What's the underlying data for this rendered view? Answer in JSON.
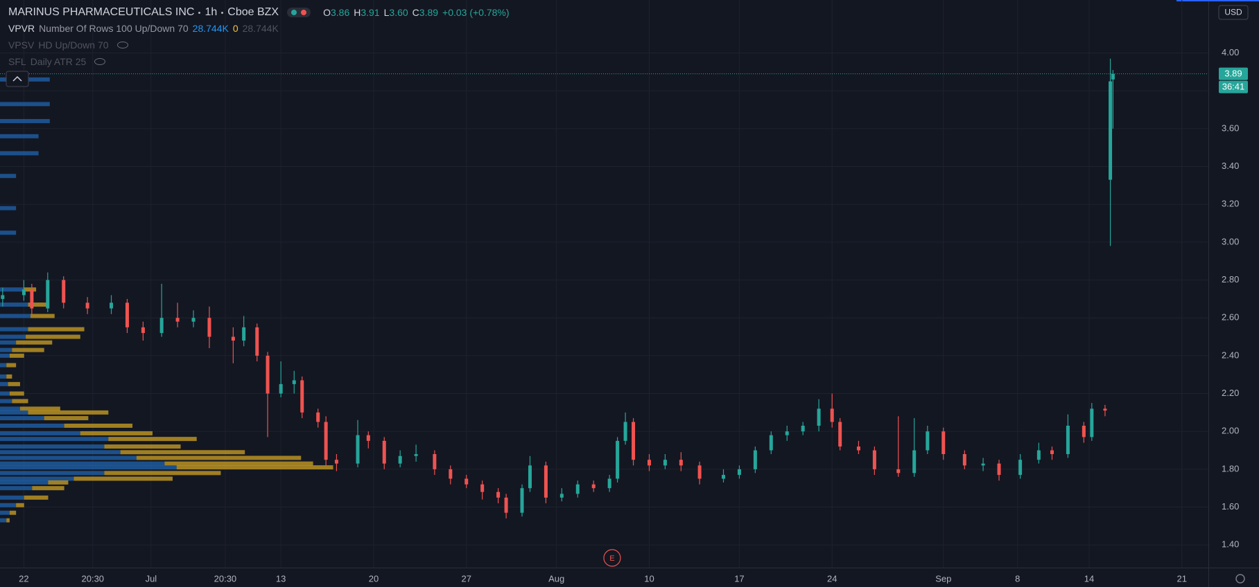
{
  "chart_data": {
    "type": "candlestick",
    "x": [
      -8,
      0,
      3,
      9,
      15,
      24,
      33,
      39,
      45,
      52,
      58,
      64,
      70,
      79,
      83,
      88,
      92,
      97,
      102,
      105,
      111,
      114,
      118,
      126,
      130,
      136,
      142,
      148,
      155,
      161,
      167,
      173,
      179,
      182,
      188,
      191,
      197,
      203,
      209,
      215,
      221,
      224,
      227,
      230,
      236,
      242,
      248,
      255,
      264,
      270,
      276,
      282,
      288,
      294,
      300,
      305,
      308,
      315,
      321,
      330,
      336,
      341,
      347,
      355,
      362,
      368,
      376,
      383,
      388,
      394,
      400,
      403,
      408,
      410,
      411
    ],
    "open": [
      2.7,
      2.72,
      2.75,
      2.65,
      2.8,
      2.68,
      2.65,
      2.68,
      2.55,
      2.52,
      2.6,
      2.58,
      2.6,
      2.5,
      2.48,
      2.55,
      2.4,
      2.2,
      2.25,
      2.27,
      2.1,
      2.05,
      1.85,
      1.83,
      1.98,
      1.95,
      1.83,
      1.87,
      1.88,
      1.8,
      1.75,
      1.72,
      1.68,
      1.65,
      1.57,
      1.7,
      1.82,
      1.65,
      1.67,
      1.72,
      1.7,
      1.75,
      1.95,
      2.05,
      1.85,
      1.82,
      1.85,
      1.82,
      1.75,
      1.77,
      1.8,
      1.9,
      1.98,
      2.0,
      2.03,
      2.12,
      2.05,
      1.92,
      1.9,
      1.8,
      1.78,
      1.9,
      2.0,
      1.88,
      1.82,
      1.83,
      1.77,
      1.85,
      1.9,
      1.88,
      2.03,
      1.97,
      2.12,
      3.33,
      3.86
    ],
    "high": [
      2.76,
      2.8,
      2.78,
      2.84,
      2.82,
      2.71,
      2.72,
      2.7,
      2.58,
      2.78,
      2.68,
      2.64,
      2.66,
      2.55,
      2.61,
      2.57,
      2.42,
      2.37,
      2.32,
      2.29,
      2.12,
      2.08,
      1.88,
      2.06,
      2.0,
      1.97,
      1.9,
      1.93,
      1.9,
      1.82,
      1.77,
      1.74,
      1.7,
      1.67,
      1.72,
      1.87,
      1.84,
      1.7,
      1.74,
      1.74,
      1.77,
      1.97,
      2.1,
      2.07,
      1.88,
      1.88,
      1.89,
      1.84,
      1.8,
      1.82,
      1.92,
      2.0,
      2.03,
      2.05,
      2.17,
      2.2,
      2.07,
      1.95,
      1.92,
      2.08,
      2.07,
      2.03,
      2.02,
      1.9,
      1.86,
      1.85,
      1.88,
      1.94,
      1.92,
      2.09,
      2.05,
      2.15,
      2.14,
      3.97,
      3.91
    ],
    "low": [
      2.66,
      2.69,
      2.62,
      2.63,
      2.65,
      2.62,
      2.62,
      2.52,
      2.48,
      2.5,
      2.55,
      2.55,
      2.44,
      2.36,
      2.45,
      2.37,
      1.97,
      2.18,
      2.2,
      2.07,
      2.02,
      1.82,
      1.79,
      1.81,
      1.91,
      1.8,
      1.81,
      1.84,
      1.77,
      1.72,
      1.7,
      1.64,
      1.62,
      1.54,
      1.55,
      1.68,
      1.62,
      1.63,
      1.65,
      1.68,
      1.68,
      1.73,
      1.93,
      1.82,
      1.79,
      1.8,
      1.79,
      1.72,
      1.73,
      1.75,
      1.78,
      1.88,
      1.95,
      1.98,
      2.0,
      2.02,
      1.9,
      1.88,
      1.77,
      1.76,
      1.76,
      1.88,
      1.85,
      1.8,
      1.79,
      1.74,
      1.75,
      1.83,
      1.85,
      1.86,
      1.94,
      1.95,
      2.08,
      2.98,
      3.6
    ],
    "close": [
      2.72,
      2.75,
      2.65,
      2.8,
      2.68,
      2.65,
      2.68,
      2.55,
      2.52,
      2.6,
      2.58,
      2.6,
      2.5,
      2.48,
      2.55,
      2.4,
      2.2,
      2.25,
      2.27,
      2.1,
      2.05,
      1.85,
      1.83,
      1.98,
      1.95,
      1.83,
      1.87,
      1.88,
      1.8,
      1.75,
      1.72,
      1.68,
      1.65,
      1.57,
      1.7,
      1.82,
      1.65,
      1.67,
      1.72,
      1.7,
      1.75,
      1.95,
      2.05,
      1.85,
      1.82,
      1.85,
      1.82,
      1.75,
      1.77,
      1.8,
      1.9,
      1.98,
      2.0,
      2.03,
      2.12,
      2.05,
      1.92,
      1.9,
      1.8,
      1.78,
      1.9,
      2.0,
      1.88,
      1.82,
      1.83,
      1.77,
      1.85,
      1.9,
      1.88,
      2.03,
      1.97,
      2.12,
      2.11,
      3.85,
      3.89
    ],
    "up_color": "#26a69a",
    "down_color": "#ef5350",
    "xlim": [
      -9,
      447
    ],
    "xticks": [
      {
        "value": 0,
        "label": "22"
      },
      {
        "value": 26,
        "label": "20:30"
      },
      {
        "value": 48,
        "label": "Jul"
      },
      {
        "value": 76,
        "label": "20:30"
      },
      {
        "value": 97,
        "label": "13"
      },
      {
        "value": 132,
        "label": "20"
      },
      {
        "value": 167,
        "label": "27"
      },
      {
        "value": 201,
        "label": "Aug"
      },
      {
        "value": 236,
        "label": "10"
      },
      {
        "value": 270,
        "label": "17"
      },
      {
        "value": 305,
        "label": "24"
      },
      {
        "value": 347,
        "label": "Sep"
      },
      {
        "value": 375,
        "label": "8"
      },
      {
        "value": 402,
        "label": "14"
      },
      {
        "value": 437,
        "label": "21"
      }
    ],
    "ylim": [
      1.28,
      4.28
    ],
    "yticks": [
      {
        "value": 1.4,
        "label": "1.40"
      },
      {
        "value": 1.6,
        "label": "1.60"
      },
      {
        "value": 1.8,
        "label": "1.80"
      },
      {
        "value": 2,
        "label": "2.00"
      },
      {
        "value": 2.2,
        "label": "2.20"
      },
      {
        "value": 2.4,
        "label": "2.40"
      },
      {
        "value": 2.6,
        "label": "2.60"
      },
      {
        "value": 2.8,
        "label": "2.80"
      },
      {
        "value": 3,
        "label": "3.00"
      },
      {
        "value": 3.2,
        "label": "3.20"
      },
      {
        "value": 3.4,
        "label": "3.40"
      },
      {
        "value": 3.6,
        "label": "3.60"
      },
      {
        "value": 3.8,
        "label": "3.80"
      },
      {
        "value": 4,
        "label": "4.00"
      }
    ],
    "grid": true,
    "currency": "USD",
    "last_price": 3.89,
    "countdown": "36:41",
    "events": [
      {
        "x": 222,
        "label": "E"
      }
    ],
    "volume_profile": {
      "prices": [
        3.86,
        3.73,
        3.64,
        3.56,
        3.47,
        3.35,
        3.18,
        3.05,
        2.75,
        2.67,
        2.61,
        2.54,
        2.5,
        2.47,
        2.43,
        2.4,
        2.35,
        2.29,
        2.25,
        2.2,
        2.16,
        2.12,
        2.1,
        2.07,
        2.03,
        1.99,
        1.96,
        1.92,
        1.89,
        1.86,
        1.83,
        1.81,
        1.78,
        1.75,
        1.73,
        1.7,
        1.65,
        1.61,
        1.57,
        1.53
      ],
      "up": [
        62,
        62,
        62,
        48,
        48,
        20,
        20,
        20,
        30,
        35,
        38,
        35,
        32,
        20,
        15,
        12,
        8,
        8,
        10,
        12,
        15,
        25,
        35,
        55,
        80,
        100,
        135,
        130,
        150,
        170,
        205,
        220,
        130,
        92,
        60,
        40,
        30,
        20,
        12,
        8
      ],
      "down": [
        0,
        0,
        0,
        0,
        0,
        0,
        0,
        0,
        15,
        25,
        30,
        70,
        68,
        45,
        40,
        18,
        12,
        7,
        15,
        18,
        20,
        50,
        100,
        55,
        85,
        90,
        110,
        95,
        155,
        205,
        185,
        195,
        145,
        123,
        25,
        40,
        30,
        10,
        8,
        4
      ],
      "up_color": "#1f5fa6",
      "down_color": "#c49a23"
    }
  },
  "header": {
    "symbol": "MARINUS PHARMACEUTICALS INC",
    "interval": "1h",
    "exchange": "Cboe BZX",
    "ohlc": [
      {
        "label": "O",
        "value": "3.86"
      },
      {
        "label": "H",
        "value": "3.91"
      },
      {
        "label": "L",
        "value": "3.60"
      },
      {
        "label": "C",
        "value": "3.89"
      }
    ],
    "change": "+0.03 (+0.78%)",
    "indicators": [
      {
        "name": "VPVR",
        "params": "Number Of Rows 100 Up/Down 70",
        "values": [
          "28.744K",
          "0",
          "28.744K"
        ]
      },
      {
        "name": "VPSV",
        "params": "HD Up/Down 70"
      },
      {
        "name": "SFL",
        "params": "Daily ATR 25"
      }
    ]
  }
}
